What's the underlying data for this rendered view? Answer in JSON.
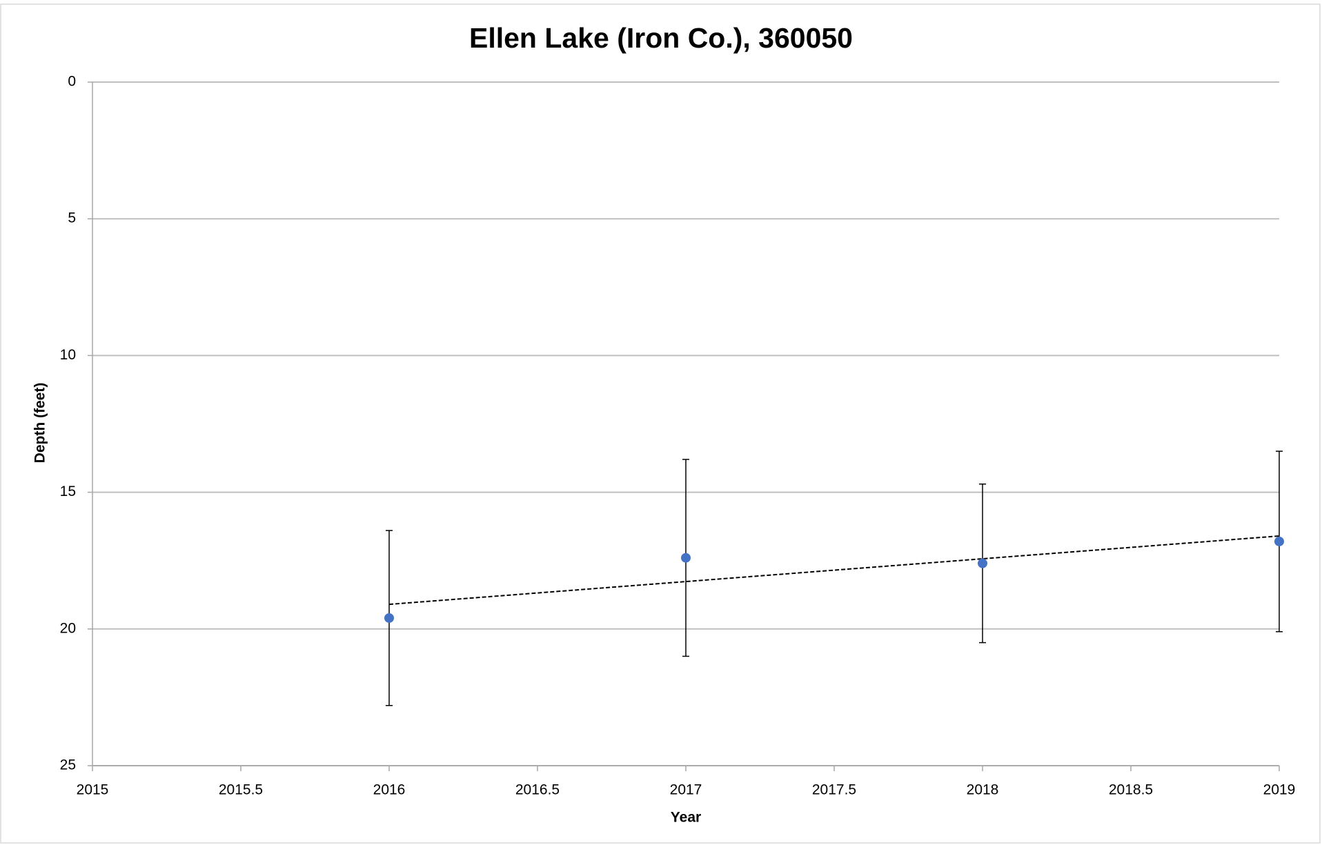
{
  "chart_data": {
    "type": "scatter",
    "title": "Ellen Lake (Iron Co.), 360050",
    "x_label": "Year",
    "y_label": "Depth (feet)",
    "series": [
      {
        "color": "#4472c4",
        "x": [
          2016,
          2017,
          2018,
          2019
        ],
        "values": [
          19.6,
          17.4,
          17.6,
          16.8
        ],
        "errors": [
          3.2,
          3.6,
          2.9,
          3.3
        ]
      }
    ],
    "trendline": {
      "color": "#000000",
      "x": [
        2016,
        2019
      ],
      "values": [
        19.1,
        16.6
      ]
    },
    "xlim": [
      2015,
      2019
    ],
    "xticks": [
      2015,
      2015.5,
      2016,
      2016.5,
      2017,
      2017.5,
      2018,
      2018.5,
      2019
    ],
    "ylim": [
      0,
      25
    ],
    "yticks": [
      0,
      5,
      10,
      15,
      20,
      25
    ],
    "y_reversed": true,
    "grid": true
  }
}
